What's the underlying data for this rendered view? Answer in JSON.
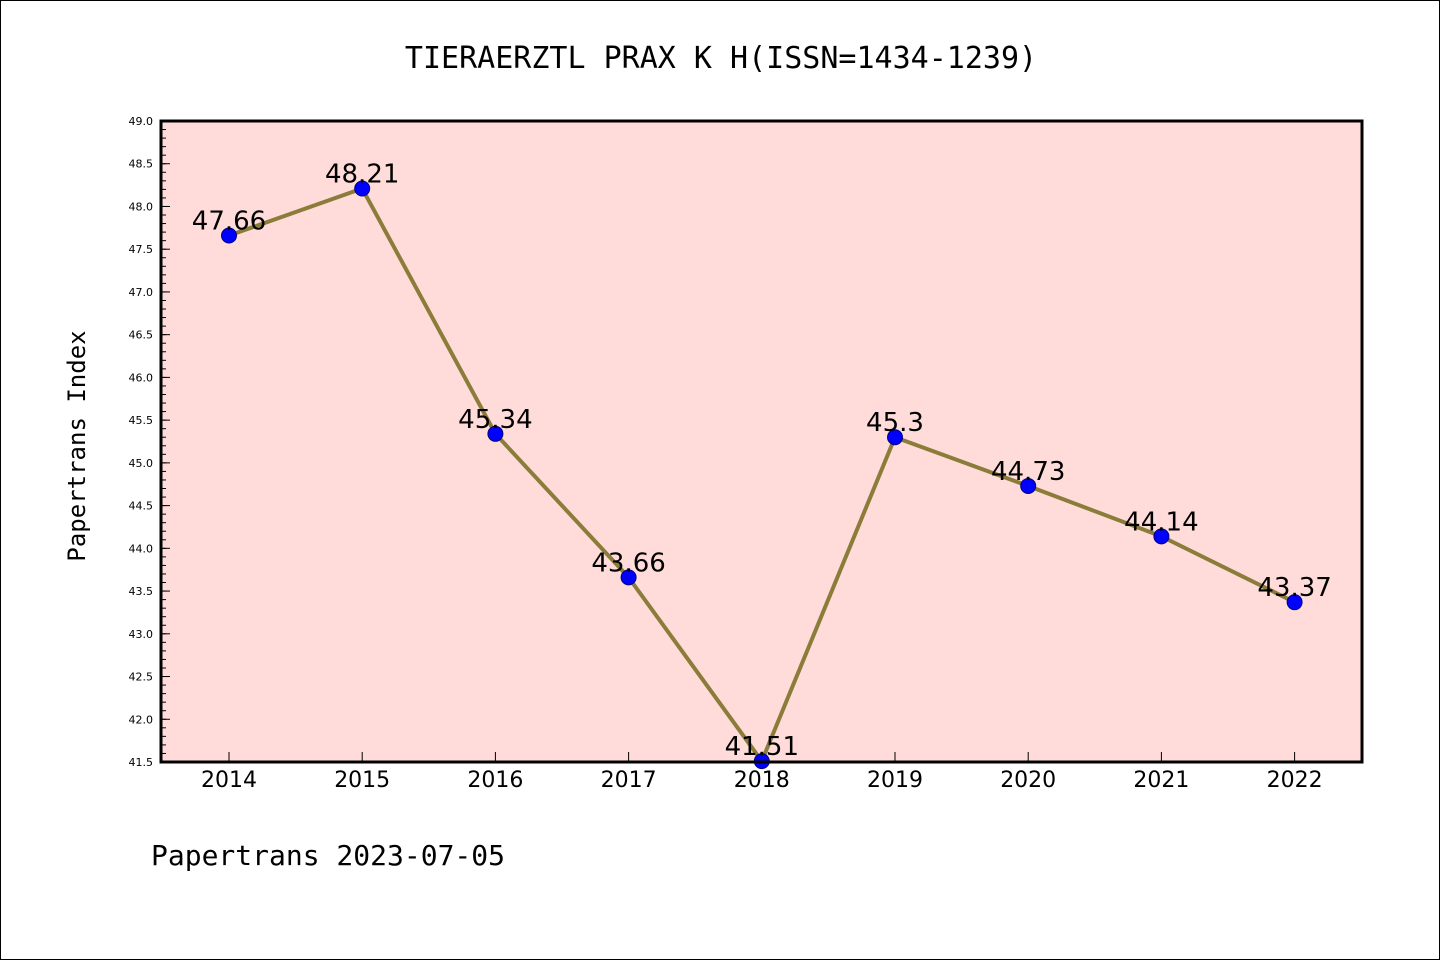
{
  "chart_data": {
    "type": "line",
    "title": "TIERAERZTL PRAX K H(ISSN=1434-1239)",
    "ylabel": "Papertrans Index",
    "xlabel": "",
    "footer": "Papertrans 2023-07-05",
    "categories": [
      "2014",
      "2015",
      "2016",
      "2017",
      "2018",
      "2019",
      "2020",
      "2021",
      "2022"
    ],
    "values": [
      47.66,
      48.21,
      45.34,
      43.66,
      41.51,
      45.3,
      44.73,
      44.14,
      43.37
    ],
    "data_labels": [
      "47.66",
      "48.21",
      "45.34",
      "43.66",
      "41.51",
      "45.3",
      "44.73",
      "44.14",
      "43.37"
    ],
    "ylim": [
      41.5,
      49.0
    ],
    "yticks": [
      "41.5",
      "42.0",
      "42.5",
      "43.0",
      "43.5",
      "44.0",
      "44.5",
      "45.0",
      "45.5",
      "46.0",
      "46.5",
      "47.0",
      "47.5",
      "48.0",
      "48.5",
      "49.0"
    ],
    "grid": false,
    "colors": {
      "plot_background": "#FFDCDA",
      "line": "#8C7C3A",
      "marker": "#0000FF",
      "marker_edge": "#000080",
      "axes": "#000000"
    }
  }
}
